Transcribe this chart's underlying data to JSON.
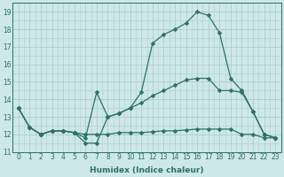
{
  "xlabel": "Humidex (Indice chaleur)",
  "background_color": "#cce8e8",
  "grid_color_major": "#b0cccc",
  "grid_color_minor": "#b0cccc",
  "line_color": "#2d7068",
  "xlim": [
    -0.5,
    23.5
  ],
  "ylim": [
    11.0,
    19.5
  ],
  "xticks": [
    0,
    1,
    2,
    3,
    4,
    5,
    6,
    7,
    8,
    9,
    10,
    11,
    12,
    13,
    14,
    15,
    16,
    17,
    18,
    19,
    20,
    21,
    22,
    23
  ],
  "yticks": [
    11,
    12,
    13,
    14,
    15,
    16,
    17,
    18,
    19
  ],
  "series": [
    [
      13.5,
      12.4,
      12.0,
      12.2,
      12.2,
      12.1,
      11.5,
      11.5,
      13.0,
      13.2,
      13.5,
      14.4,
      17.2,
      17.7,
      18.0,
      18.35,
      19.0,
      18.8,
      17.8,
      15.2,
      14.5,
      13.3,
      12.0,
      11.8
    ],
    [
      13.5,
      12.4,
      12.0,
      12.2,
      12.2,
      12.1,
      11.8,
      14.4,
      13.0,
      13.2,
      13.5,
      13.8,
      14.2,
      14.5,
      14.8,
      15.1,
      15.2,
      15.2,
      14.5,
      14.5,
      14.4,
      13.3,
      12.0,
      11.8
    ],
    [
      13.5,
      12.4,
      12.0,
      12.2,
      12.2,
      12.1,
      12.0,
      12.0,
      12.0,
      12.1,
      12.1,
      12.1,
      12.15,
      12.2,
      12.2,
      12.25,
      12.3,
      12.3,
      12.3,
      12.3,
      12.0,
      12.0,
      11.8,
      11.8
    ]
  ],
  "tick_fontsize": 5.5,
  "xlabel_fontsize": 6.5,
  "marker_size": 2.5,
  "linewidth": 0.9
}
